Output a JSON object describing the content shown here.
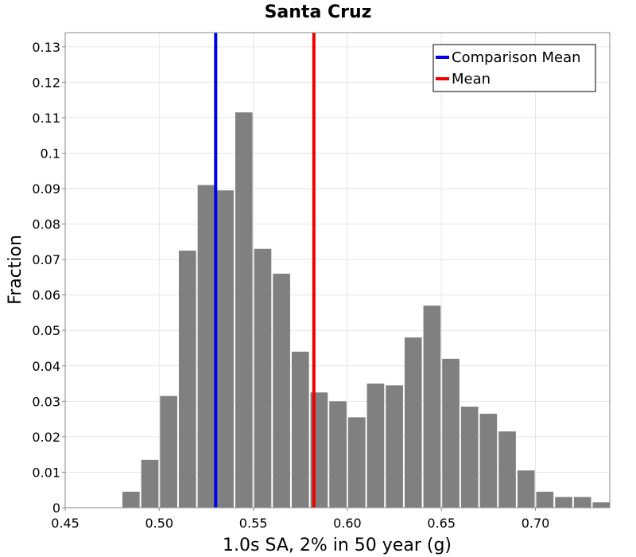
{
  "chart_data": {
    "type": "bar",
    "title": "Santa Cruz",
    "xlabel": "1.0s SA, 2% in 50 year (g)",
    "ylabel": "Fraction",
    "xlim": [
      0.45,
      0.7395
    ],
    "ylim": [
      0,
      0.134
    ],
    "grid": true,
    "bar_color": "#808080",
    "bin_width": 0.01,
    "bins": [
      {
        "x": 0.485,
        "value": 0.0045
      },
      {
        "x": 0.495,
        "value": 0.0135
      },
      {
        "x": 0.505,
        "value": 0.0315
      },
      {
        "x": 0.515,
        "value": 0.0725
      },
      {
        "x": 0.525,
        "value": 0.091
      },
      {
        "x": 0.535,
        "value": 0.0895
      },
      {
        "x": 0.545,
        "value": 0.1115
      },
      {
        "x": 0.555,
        "value": 0.073
      },
      {
        "x": 0.565,
        "value": 0.066
      },
      {
        "x": 0.575,
        "value": 0.044
      },
      {
        "x": 0.585,
        "value": 0.0325
      },
      {
        "x": 0.595,
        "value": 0.03
      },
      {
        "x": 0.605,
        "value": 0.0255
      },
      {
        "x": 0.615,
        "value": 0.035
      },
      {
        "x": 0.625,
        "value": 0.0345
      },
      {
        "x": 0.635,
        "value": 0.048
      },
      {
        "x": 0.645,
        "value": 0.057
      },
      {
        "x": 0.655,
        "value": 0.042
      },
      {
        "x": 0.665,
        "value": 0.0285
      },
      {
        "x": 0.675,
        "value": 0.0265
      },
      {
        "x": 0.685,
        "value": 0.0215
      },
      {
        "x": 0.695,
        "value": 0.0105
      },
      {
        "x": 0.705,
        "value": 0.0045
      },
      {
        "x": 0.715,
        "value": 0.003
      },
      {
        "x": 0.725,
        "value": 0.003
      },
      {
        "x": 0.735,
        "value": 0.0015
      }
    ],
    "xticks": [
      "0.45",
      "0.50",
      "0.55",
      "0.60",
      "0.65",
      "0.70"
    ],
    "xtick_values": [
      0.45,
      0.5,
      0.55,
      0.6,
      0.65,
      0.7
    ],
    "yticks": [
      "0",
      "0.01",
      "0.02",
      "0.03",
      "0.04",
      "0.05",
      "0.06",
      "0.07",
      "0.08",
      "0.09",
      "0.1",
      "0.11",
      "0.12",
      "0.13"
    ],
    "ytick_values": [
      0,
      0.01,
      0.02,
      0.03,
      0.04,
      0.05,
      0.06,
      0.07,
      0.08,
      0.09,
      0.1,
      0.11,
      0.12,
      0.13
    ],
    "vlines": [
      {
        "name": "Comparison Mean",
        "x": 0.53,
        "color": "#0000ee"
      },
      {
        "name": "Mean",
        "x": 0.5822,
        "color": "#ee0000"
      }
    ],
    "legend": {
      "position": "top-right",
      "entries": [
        {
          "label": "Comparison Mean",
          "color": "#0000ee"
        },
        {
          "label": "Mean",
          "color": "#ee0000"
        }
      ]
    }
  }
}
